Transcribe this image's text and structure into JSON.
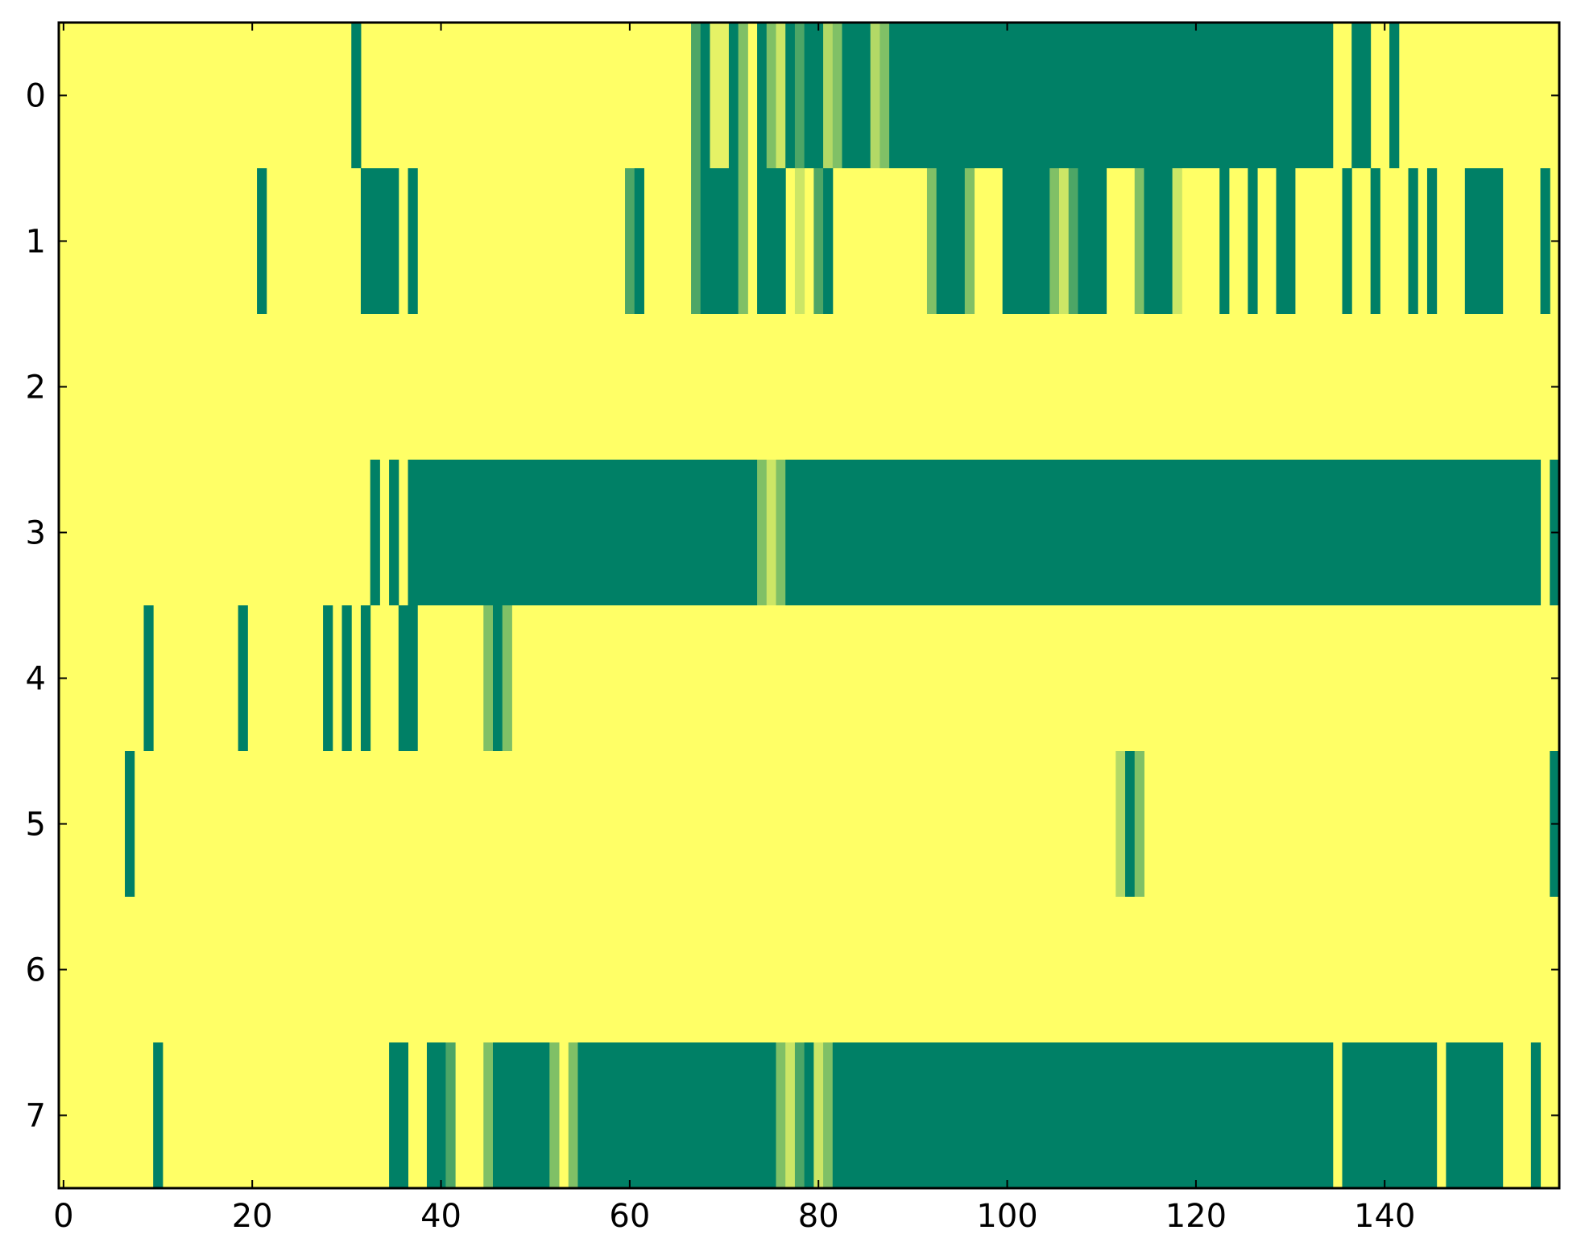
{
  "chart_data": {
    "type": "heatmap",
    "colormap": "summer_r",
    "colors": {
      "low": "#ffff66",
      "high": "#008066",
      "mid_light": "#e6f266",
      "mid": "#c4e066",
      "mid_dark": "#80b366"
    },
    "grid": false,
    "xlim": [
      -0.5,
      158.5
    ],
    "ylim": [
      7.5,
      -0.5
    ],
    "x_ticks": [
      0,
      20,
      40,
      60,
      80,
      100,
      120,
      140
    ],
    "x_tick_labels": [
      "0",
      "20",
      "40",
      "60",
      "80",
      "100",
      "120",
      "140"
    ],
    "y_ticks": [
      0,
      1,
      2,
      3,
      4,
      5,
      6,
      7
    ],
    "y_tick_labels": [
      "0",
      "1",
      "2",
      "3",
      "4",
      "5",
      "6",
      "7"
    ],
    "n_cols": 159,
    "rows": [
      {
        "row": 0,
        "runs": [
          [
            31,
            31,
            1
          ],
          [
            67,
            67,
            0.7
          ],
          [
            68,
            68,
            1
          ],
          [
            69,
            70,
            0.1
          ],
          [
            71,
            71,
            1
          ],
          [
            72,
            72,
            0.5
          ],
          [
            74,
            74,
            1
          ],
          [
            75,
            75,
            0.5
          ],
          [
            76,
            76,
            0.2
          ],
          [
            77,
            77,
            1
          ],
          [
            78,
            78,
            0.7
          ],
          [
            79,
            80,
            1
          ],
          [
            81,
            81,
            0.3
          ],
          [
            82,
            82,
            0.5
          ],
          [
            83,
            85,
            1
          ],
          [
            86,
            86,
            0.3
          ],
          [
            87,
            87,
            0.5
          ],
          [
            88,
            134,
            1
          ],
          [
            137,
            138,
            1
          ],
          [
            141,
            141,
            1
          ]
        ]
      },
      {
        "row": 1,
        "runs": [
          [
            21,
            21,
            1
          ],
          [
            32,
            35,
            1
          ],
          [
            37,
            37,
            1
          ],
          [
            60,
            60,
            0.7
          ],
          [
            61,
            61,
            1
          ],
          [
            67,
            67,
            0.7
          ],
          [
            68,
            71,
            1
          ],
          [
            72,
            72,
            0.5
          ],
          [
            74,
            76,
            1
          ],
          [
            78,
            78,
            0.2
          ],
          [
            80,
            80,
            0.7
          ],
          [
            81,
            81,
            1
          ],
          [
            92,
            92,
            0.5
          ],
          [
            93,
            95,
            1
          ],
          [
            96,
            96,
            0.5
          ],
          [
            100,
            104,
            1
          ],
          [
            105,
            105,
            0.5
          ],
          [
            106,
            106,
            0.2
          ],
          [
            107,
            107,
            0.7
          ],
          [
            108,
            110,
            1
          ],
          [
            114,
            114,
            0.5
          ],
          [
            115,
            117,
            1
          ],
          [
            118,
            118,
            0.2
          ],
          [
            123,
            123,
            1
          ],
          [
            126,
            126,
            1
          ],
          [
            129,
            130,
            1
          ],
          [
            136,
            136,
            1
          ],
          [
            139,
            139,
            1
          ],
          [
            143,
            143,
            1
          ],
          [
            145,
            145,
            1
          ],
          [
            149,
            152,
            1
          ],
          [
            157,
            157,
            1
          ]
        ]
      },
      {
        "row": 2,
        "runs": []
      },
      {
        "row": 3,
        "runs": [
          [
            33,
            33,
            1
          ],
          [
            35,
            35,
            1
          ],
          [
            37,
            73,
            1
          ],
          [
            74,
            74,
            0.5
          ],
          [
            75,
            75,
            0.2
          ],
          [
            76,
            76,
            0.5
          ],
          [
            77,
            156,
            1
          ],
          [
            158,
            158,
            1
          ]
        ]
      },
      {
        "row": 4,
        "runs": [
          [
            9,
            9,
            1
          ],
          [
            19,
            19,
            1
          ],
          [
            28,
            28,
            1
          ],
          [
            30,
            30,
            1
          ],
          [
            32,
            32,
            1
          ],
          [
            36,
            37,
            1
          ],
          [
            45,
            45,
            0.5
          ],
          [
            46,
            46,
            1
          ],
          [
            47,
            47,
            0.5
          ]
        ]
      },
      {
        "row": 5,
        "runs": [
          [
            7,
            7,
            1
          ],
          [
            112,
            112,
            0.3
          ],
          [
            113,
            113,
            1
          ],
          [
            114,
            114,
            0.5
          ],
          [
            158,
            158,
            1
          ]
        ]
      },
      {
        "row": 6,
        "runs": []
      },
      {
        "row": 7,
        "runs": [
          [
            10,
            10,
            1
          ],
          [
            35,
            36,
            1
          ],
          [
            39,
            40,
            1
          ],
          [
            41,
            41,
            0.7
          ],
          [
            45,
            45,
            0.5
          ],
          [
            46,
            51,
            1
          ],
          [
            52,
            52,
            0.5
          ],
          [
            54,
            54,
            0.5
          ],
          [
            55,
            75,
            1
          ],
          [
            76,
            76,
            0.5
          ],
          [
            77,
            77,
            0.2
          ],
          [
            78,
            78,
            0.7
          ],
          [
            79,
            79,
            1
          ],
          [
            80,
            80,
            0.2
          ],
          [
            81,
            81,
            0.5
          ],
          [
            82,
            134,
            1
          ],
          [
            136,
            145,
            1
          ],
          [
            147,
            152,
            1
          ],
          [
            156,
            156,
            1
          ]
        ]
      }
    ]
  }
}
